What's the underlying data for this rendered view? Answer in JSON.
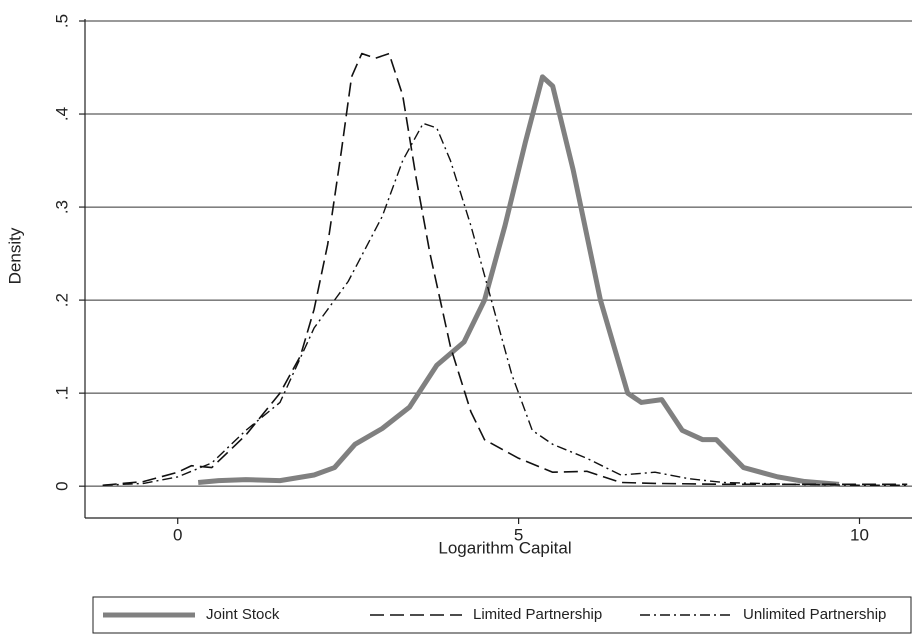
{
  "chart_data": {
    "type": "line",
    "x_label": "Logarithm Capital",
    "y_label": "Density",
    "xlim": [
      -1.36,
      10.77
    ],
    "ylim": [
      -0.017,
      0.5
    ],
    "xticks": [
      0,
      5,
      10
    ],
    "yticks": [
      0,
      {
        "value": 0.1,
        "label": ".1"
      },
      {
        "value": 0.2,
        "label": ".2"
      },
      {
        "value": 0.3,
        "label": ".3"
      },
      {
        "value": 0.4,
        "label": ".4"
      },
      {
        "value": 0.5,
        "label": ".5"
      }
    ],
    "grid": true,
    "legend": "bottom",
    "series": [
      {
        "name": "Joint Stock",
        "color": "#808080",
        "line_style": "solid",
        "x": [
          0.3,
          0.6,
          1.0,
          1.5,
          2.0,
          2.3,
          2.6,
          3.0,
          3.4,
          3.8,
          4.2,
          4.5,
          4.8,
          5.1,
          5.35,
          5.5,
          5.8,
          6.2,
          6.6,
          6.8,
          7.1,
          7.4,
          7.7,
          7.9,
          8.3,
          8.8,
          9.2,
          9.7
        ],
        "values": [
          0.004,
          0.006,
          0.007,
          0.006,
          0.012,
          0.02,
          0.045,
          0.062,
          0.085,
          0.13,
          0.155,
          0.2,
          0.28,
          0.37,
          0.44,
          0.43,
          0.34,
          0.2,
          0.1,
          0.09,
          0.093,
          0.06,
          0.05,
          0.05,
          0.02,
          0.01,
          0.005,
          0.002
        ]
      },
      {
        "name": "Limited Partnership",
        "color": "#111111",
        "line_style": "dash",
        "x": [
          -1.1,
          -0.5,
          0,
          0.2,
          0.5,
          1.0,
          1.5,
          1.8,
          2.0,
          2.2,
          2.4,
          2.55,
          2.7,
          2.9,
          3.1,
          3.3,
          3.5,
          3.7,
          4.0,
          4.3,
          4.5,
          5.0,
          5.5,
          6.0,
          6.5,
          7.0,
          8.0,
          9.0,
          10.0,
          10.7
        ],
        "values": [
          0.001,
          0.005,
          0.015,
          0.022,
          0.02,
          0.055,
          0.1,
          0.14,
          0.19,
          0.26,
          0.36,
          0.44,
          0.465,
          0.46,
          0.465,
          0.42,
          0.33,
          0.25,
          0.15,
          0.08,
          0.05,
          0.03,
          0.015,
          0.016,
          0.004,
          0.003,
          0.002,
          0.002,
          0.002,
          0.002
        ]
      },
      {
        "name": "Unlimited Partnership",
        "color": "#111111",
        "line_style": "dash-dot",
        "x": [
          -1.1,
          -0.5,
          0,
          0.5,
          1.0,
          1.5,
          2.0,
          2.5,
          3.0,
          3.3,
          3.6,
          3.8,
          4.0,
          4.3,
          4.6,
          4.9,
          5.2,
          5.5,
          6.0,
          6.5,
          7.0,
          7.5,
          8.0,
          9.0,
          10.0,
          10.7
        ],
        "values": [
          0.001,
          0.003,
          0.01,
          0.025,
          0.06,
          0.09,
          0.17,
          0.22,
          0.29,
          0.35,
          0.39,
          0.385,
          0.35,
          0.28,
          0.2,
          0.12,
          0.06,
          0.045,
          0.03,
          0.012,
          0.015,
          0.008,
          0.004,
          0.002,
          0.001,
          0.001
        ]
      }
    ]
  }
}
